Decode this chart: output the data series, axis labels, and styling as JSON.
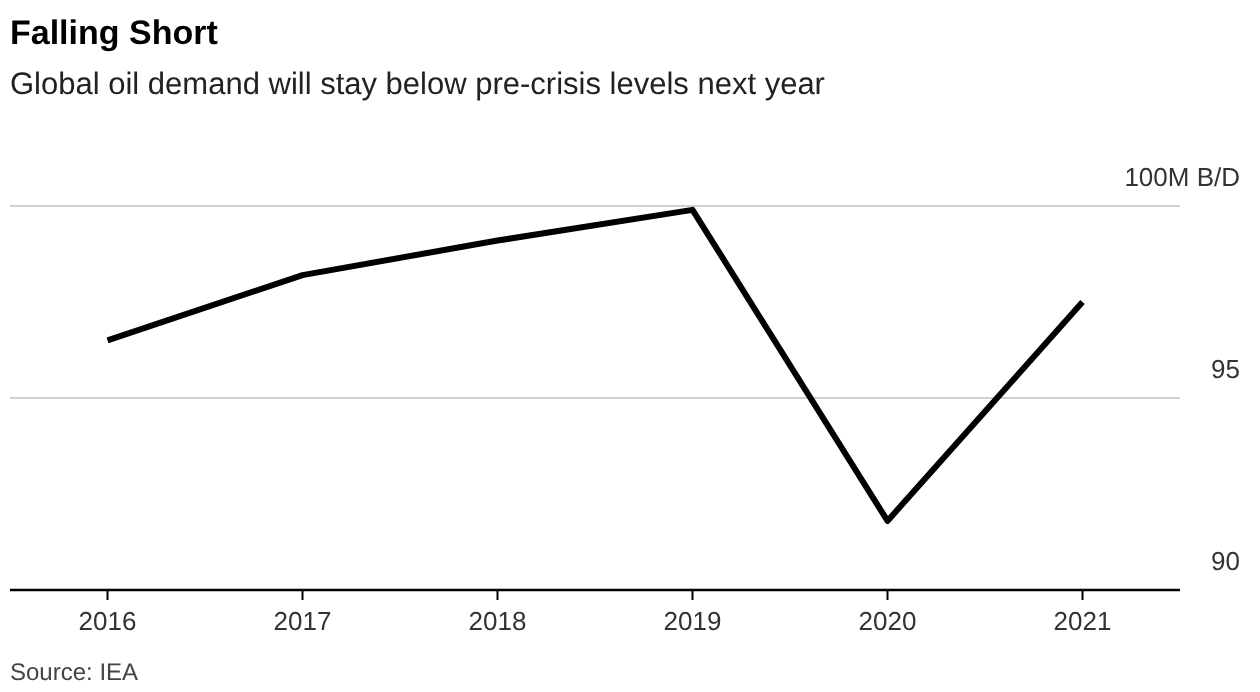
{
  "chart_data": {
    "type": "line",
    "title": "Falling Short",
    "subtitle": "Global oil demand will stay below pre-crisis levels next year",
    "categories": [
      "2016",
      "2017",
      "2018",
      "2019",
      "2020",
      "2021"
    ],
    "series": [
      {
        "color": "#000000",
        "values": [
          96.5,
          98.2,
          99.1,
          99.9,
          91.8,
          97.5
        ]
      }
    ],
    "ylim": [
      90,
      100
    ],
    "yticks": [
      90,
      95,
      {
        "value": 100,
        "label": "100M B/D"
      }
    ],
    "grid": "y",
    "marker": "none",
    "line_style": "solid",
    "annotations": [
      "Source: IEA"
    ]
  }
}
